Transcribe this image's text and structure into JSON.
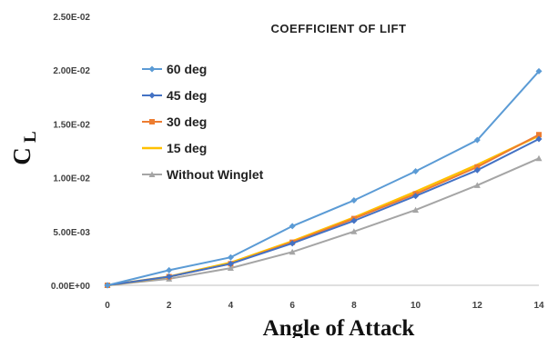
{
  "chart_data": {
    "type": "line",
    "title": "COEFFICIENT OF LIFT",
    "xlabel": "Angle of Attack",
    "ylabel": "C",
    "ylabel_sub": "L",
    "x": [
      0,
      2,
      4,
      6,
      8,
      10,
      12,
      14
    ],
    "x_ticks": [
      "0",
      "2",
      "4",
      "6",
      "8",
      "10",
      "12",
      "14"
    ],
    "xlim": [
      0,
      14
    ],
    "ylim": [
      0,
      0.025
    ],
    "y_ticks": [
      {
        "value": 0,
        "label": "0.00E+00"
      },
      {
        "value": 0.005,
        "label": "5.00E-03"
      },
      {
        "value": 0.01,
        "label": "1.00E-02"
      },
      {
        "value": 0.015,
        "label": "1.50E-02"
      },
      {
        "value": 0.02,
        "label": "2.00E-02"
      },
      {
        "value": 0.025,
        "label": "2.50E-02"
      }
    ],
    "grid": false,
    "legend_position": "top-left",
    "series": [
      {
        "name": "60 deg",
        "color": "#5b9bd5",
        "marker": "diamond",
        "values": [
          0,
          0.0014,
          0.0026,
          0.0055,
          0.0079,
          0.0106,
          0.0135,
          0.0199
        ]
      },
      {
        "name": "45 deg",
        "color": "#4472c4",
        "marker": "diamond",
        "values": [
          0,
          0.0008,
          0.002,
          0.0039,
          0.006,
          0.0083,
          0.0107,
          0.0136
        ]
      },
      {
        "name": "30 deg",
        "color": "#ed7d31",
        "marker": "square",
        "values": [
          0,
          0.0008,
          0.002,
          0.004,
          0.0062,
          0.0085,
          0.011,
          0.014
        ]
      },
      {
        "name": "15 deg",
        "color": "#ffc000",
        "marker": "none",
        "values": [
          0,
          0.0008,
          0.0021,
          0.0041,
          0.0063,
          0.0087,
          0.0112,
          0.0139
        ]
      },
      {
        "name": "Without Winglet",
        "color": "#a5a5a5",
        "marker": "triangle",
        "values": [
          0,
          0.0006,
          0.0016,
          0.0031,
          0.005,
          0.007,
          0.0093,
          0.0118
        ]
      }
    ]
  }
}
